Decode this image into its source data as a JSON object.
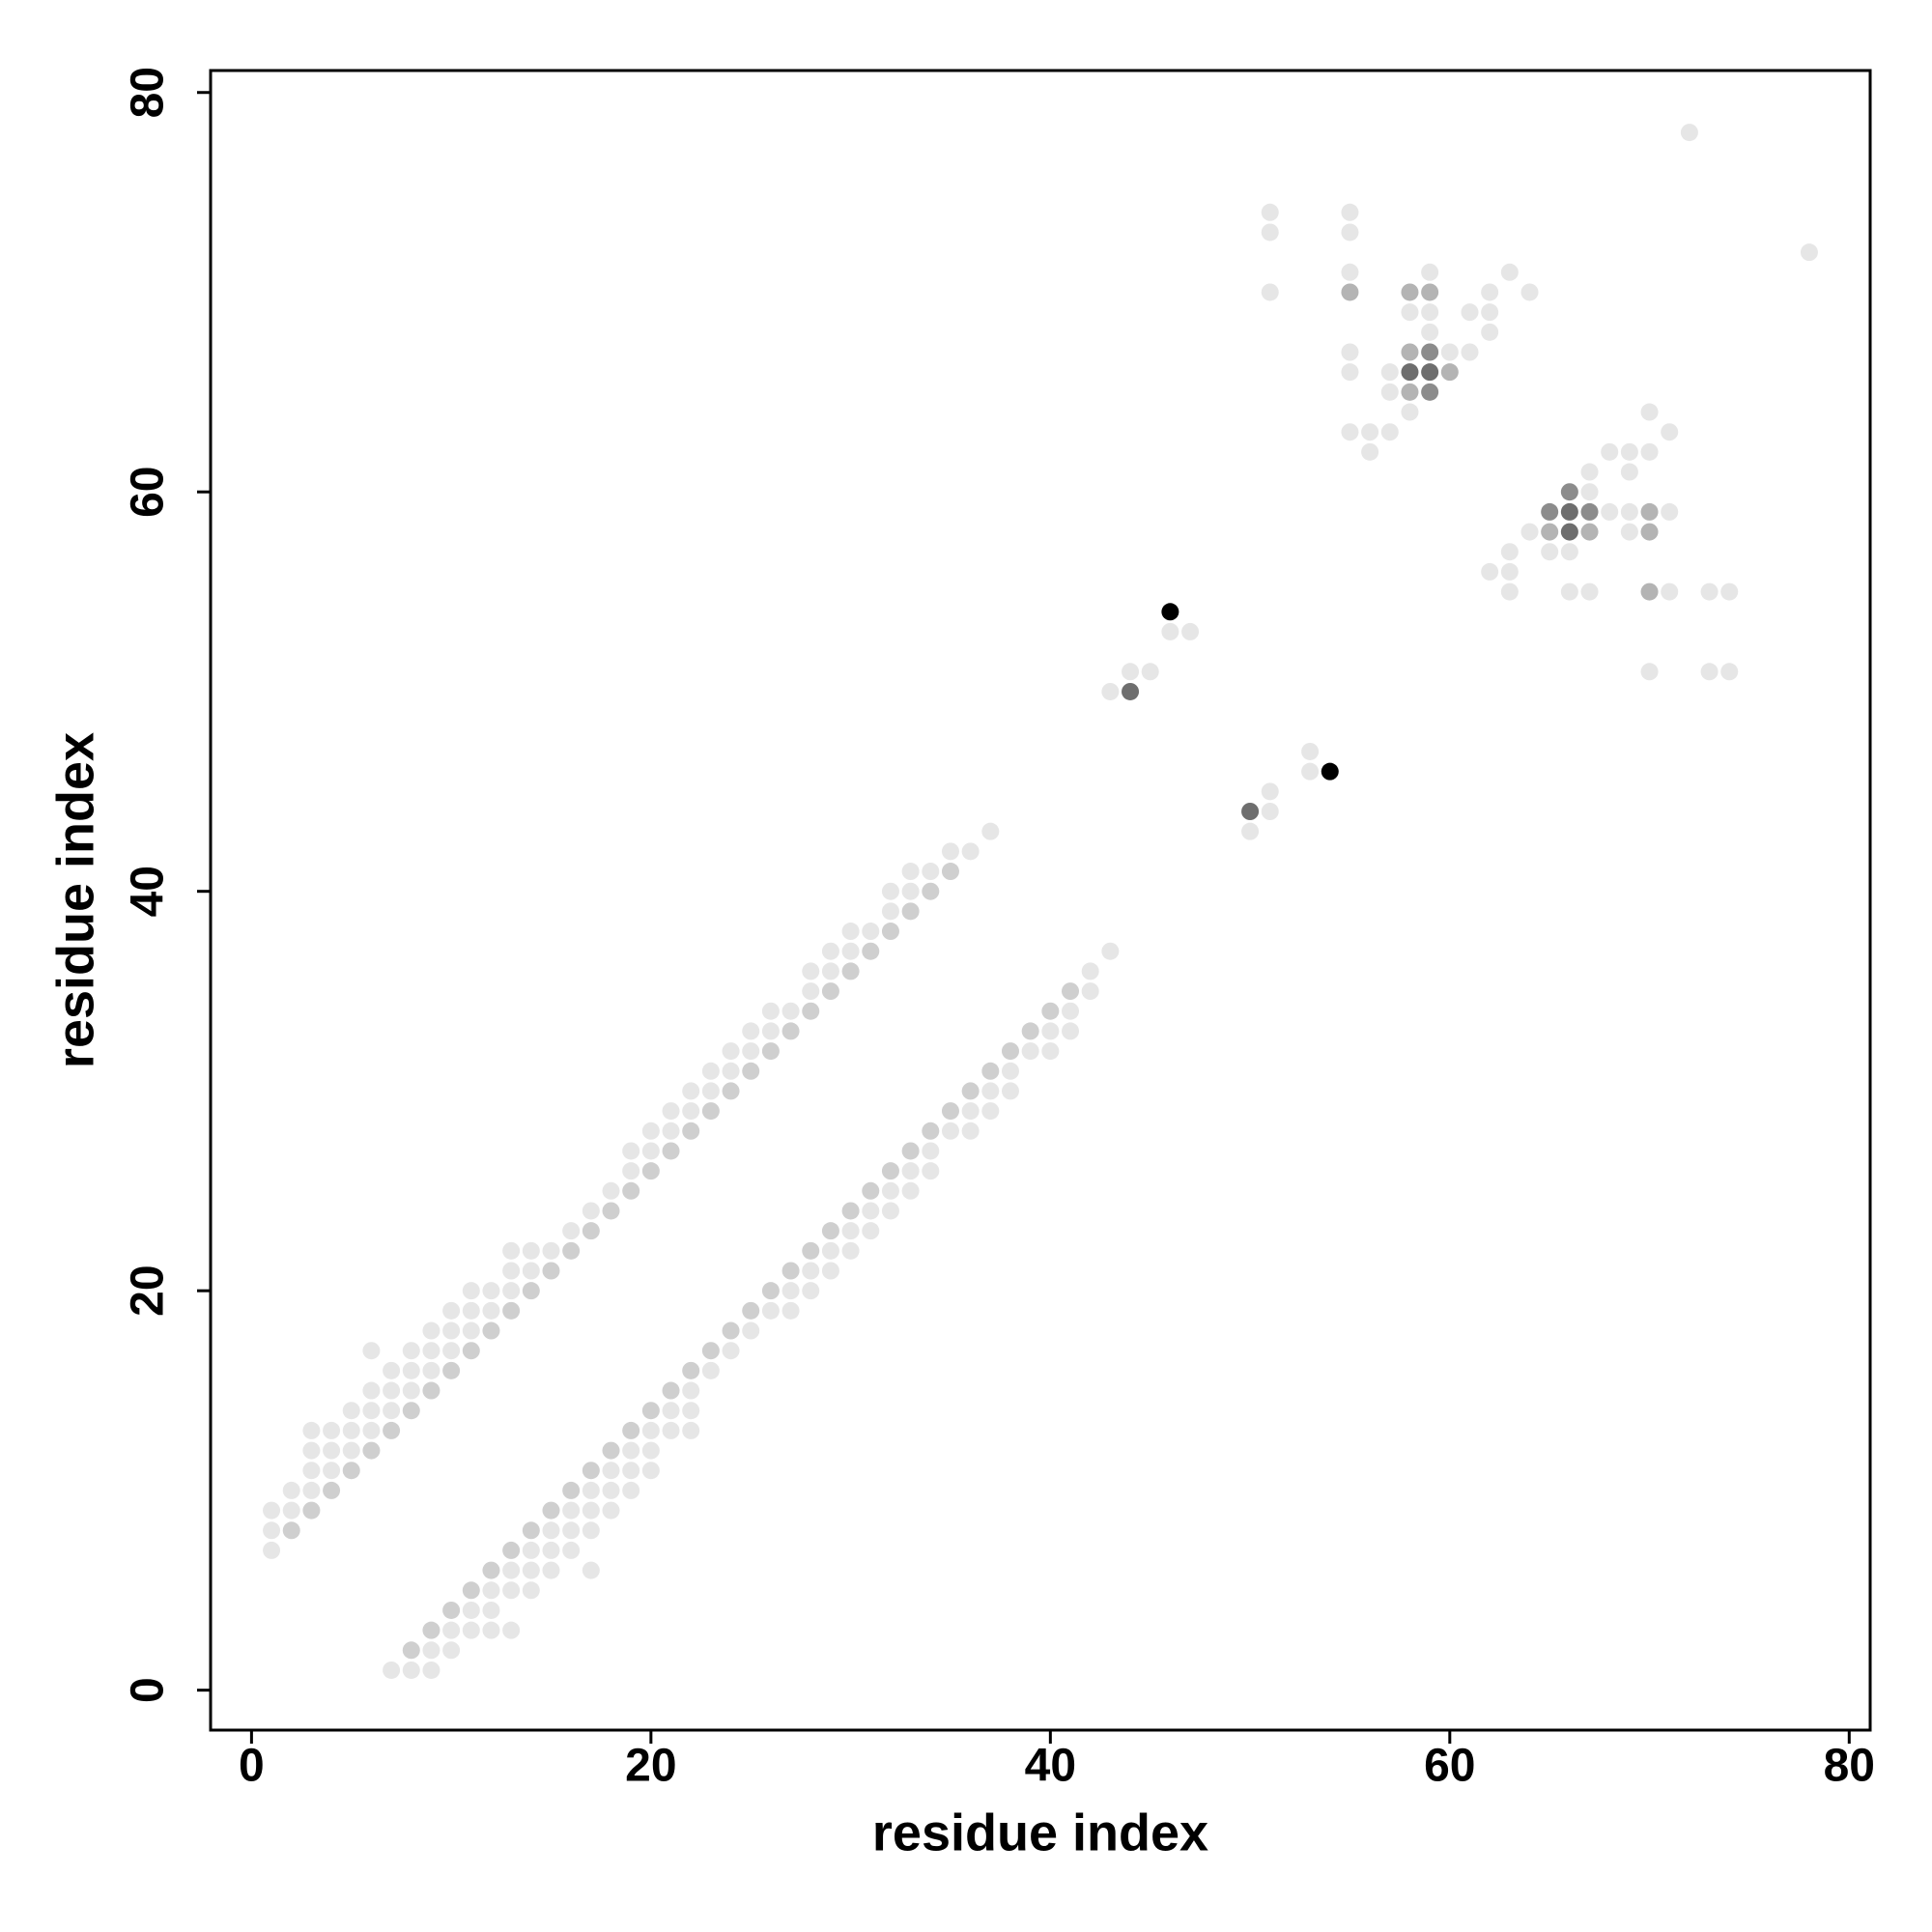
{
  "chart_data": {
    "type": "scatter",
    "xlabel": "residue index",
    "ylabel": "residue index",
    "xlim": [
      -2.05,
      81.05
    ],
    "ylim": [
      -2,
      81.1
    ],
    "xticks": [
      0,
      20,
      40,
      60,
      80
    ],
    "yticks": [
      0,
      20,
      40,
      60,
      80
    ],
    "series": [
      {
        "color": "#e6e6e6",
        "x": [
          1,
          1,
          1,
          2,
          2,
          3,
          3,
          3,
          3,
          4,
          4,
          4,
          5,
          5,
          5,
          6,
          6,
          6,
          6,
          7,
          7,
          7,
          8,
          8,
          8,
          9,
          9,
          9,
          10,
          10,
          10,
          11,
          11,
          11,
          12,
          12,
          13,
          13,
          13,
          14,
          14,
          15,
          16,
          17,
          18,
          19,
          19,
          20,
          20,
          21,
          21,
          22,
          22,
          23,
          23,
          24,
          24,
          25,
          25,
          26,
          26,
          27,
          28,
          28,
          29,
          29,
          30,
          30,
          31,
          32,
          32,
          33,
          33,
          34,
          35,
          36,
          37,
          7,
          8,
          9,
          9,
          10,
          10,
          11,
          11,
          12,
          12,
          12,
          13,
          13,
          13,
          14,
          14,
          14,
          15,
          15,
          15,
          16,
          16,
          16,
          17,
          17,
          17,
          17,
          18,
          18,
          18,
          19,
          19,
          19,
          20,
          20,
          20,
          21,
          21,
          22,
          22,
          22,
          23,
          24,
          25,
          26,
          27,
          27,
          28,
          28,
          29,
          29,
          30,
          30,
          31,
          31,
          32,
          32,
          33,
          33,
          34,
          34,
          35,
          36,
          36,
          37,
          37,
          38,
          38,
          39,
          40,
          40,
          41,
          41,
          42,
          42,
          43,
          43,
          44,
          45,
          46,
          47,
          50,
          51,
          51,
          53,
          53,
          51,
          51,
          51,
          55,
          55,
          55,
          55,
          55,
          55,
          56,
          56,
          57,
          57,
          57,
          58,
          58,
          59,
          59,
          59,
          60,
          61,
          61,
          62,
          62,
          62,
          63,
          64,
          72,
          78,
          62,
          63,
          63,
          63,
          64,
          65,
          66,
          66,
          67,
          67,
          67,
          68,
          68,
          69,
          69,
          69,
          69,
          70,
          70,
          70,
          71,
          71,
          71,
          73,
          73,
          74,
          74
        ],
        "y": [
          7,
          8,
          9,
          9,
          10,
          10,
          11,
          12,
          13,
          11,
          12,
          13,
          12,
          13,
          14,
          13,
          14,
          15,
          17,
          14,
          15,
          16,
          15,
          16,
          17,
          16,
          17,
          18,
          17,
          18,
          19,
          18,
          19,
          20,
          19,
          20,
          20,
          21,
          22,
          21,
          22,
          22,
          23,
          24,
          25,
          26,
          27,
          27,
          28,
          28,
          29,
          29,
          30,
          30,
          31,
          31,
          32,
          32,
          33,
          33,
          34,
          34,
          35,
          36,
          36,
          37,
          37,
          38,
          38,
          39,
          40,
          40,
          41,
          41,
          42,
          42,
          43,
          1,
          1,
          1,
          2,
          2,
          3,
          3,
          4,
          3,
          4,
          5,
          3,
          5,
          6,
          5,
          6,
          7,
          6,
          7,
          8,
          7,
          8,
          9,
          6,
          8,
          9,
          10,
          9,
          10,
          11,
          10,
          11,
          12,
          11,
          12,
          13,
          13,
          14,
          13,
          14,
          15,
          16,
          17,
          18,
          19,
          19,
          20,
          20,
          21,
          21,
          22,
          22,
          23,
          23,
          24,
          24,
          25,
          25,
          26,
          26,
          27,
          28,
          28,
          29,
          29,
          30,
          30,
          31,
          32,
          32,
          33,
          33,
          34,
          35,
          36,
          37,
          50,
          51,
          51,
          53,
          53,
          43,
          44,
          45,
          46,
          47,
          74,
          73,
          70,
          74,
          73,
          71,
          67,
          66,
          63,
          63,
          62,
          63,
          65,
          66,
          69,
          64,
          71,
          69,
          68,
          67,
          69,
          67,
          70,
          69,
          68,
          71,
          70,
          78,
          72,
          56,
          57,
          56,
          55,
          58,
          57,
          57,
          55,
          61,
          60,
          55,
          62,
          59,
          62,
          61,
          59,
          58,
          64,
          62,
          51,
          63,
          59,
          55,
          55,
          51,
          55,
          51
        ]
      },
      {
        "color": "#cfcfcf",
        "x": [
          2,
          3,
          4,
          5,
          6,
          7,
          8,
          9,
          10,
          11,
          12,
          13,
          14,
          15,
          16,
          17,
          18,
          19,
          20,
          21,
          22,
          23,
          24,
          25,
          26,
          27,
          28,
          29,
          30,
          31,
          32,
          33,
          34,
          35,
          8,
          9,
          10,
          11,
          12,
          13,
          14,
          15,
          16,
          17,
          18,
          19,
          20,
          21,
          22,
          23,
          24,
          25,
          26,
          27,
          28,
          29,
          30,
          31,
          32,
          33,
          34,
          35,
          36,
          37,
          38,
          39,
          40,
          41
        ],
        "y": [
          8,
          9,
          10,
          11,
          12,
          13,
          14,
          15,
          16,
          17,
          18,
          19,
          20,
          21,
          22,
          23,
          24,
          25,
          26,
          27,
          28,
          29,
          30,
          31,
          32,
          33,
          34,
          35,
          36,
          37,
          38,
          39,
          40,
          41,
          2,
          3,
          4,
          5,
          6,
          7,
          8,
          9,
          10,
          11,
          12,
          13,
          14,
          15,
          16,
          17,
          18,
          19,
          20,
          21,
          22,
          23,
          24,
          25,
          26,
          27,
          28,
          29,
          30,
          31,
          32,
          33,
          34,
          35
        ]
      },
      {
        "color": "#b4b4b4",
        "x": [
          55,
          58,
          58,
          58,
          59,
          60,
          65,
          67,
          70,
          70,
          70
        ],
        "y": [
          70,
          70,
          67,
          65,
          70,
          66,
          58,
          58,
          59,
          58,
          55
        ]
      },
      {
        "color": "#8c8c8c",
        "x": [
          59,
          59,
          65,
          66,
          67
        ],
        "y": [
          67,
          65,
          59,
          60,
          59
        ]
      },
      {
        "color": "#6e6e6e",
        "x": [
          44,
          50,
          58,
          59,
          66,
          66
        ],
        "y": [
          50,
          44,
          66,
          66,
          59,
          58
        ]
      },
      {
        "color": "#000000",
        "x": [
          46,
          54
        ],
        "y": [
          54,
          46
        ]
      }
    ]
  }
}
